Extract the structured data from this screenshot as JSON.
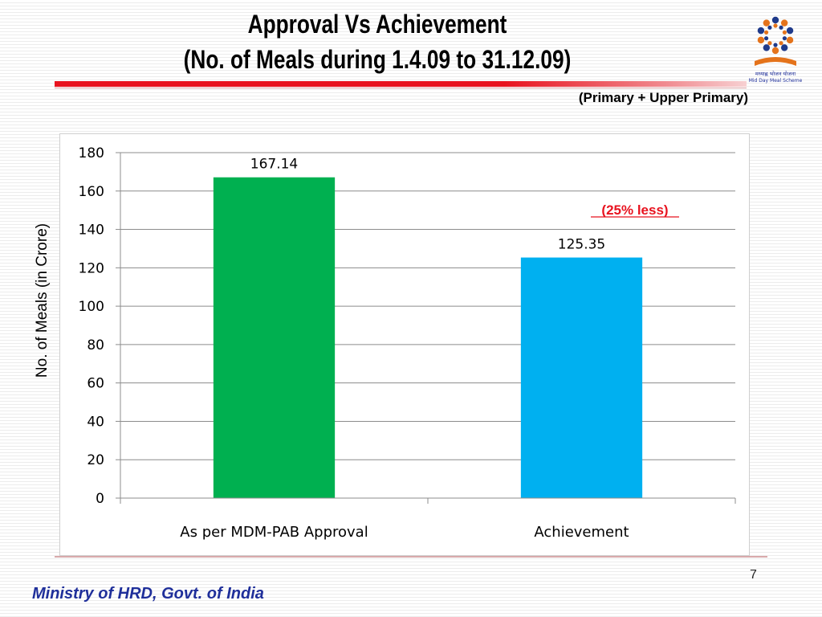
{
  "header": {
    "title_line1": "Approval Vs Achievement",
    "title_line2": "(No. of Meals during 1.4.09 to 31.12.09)",
    "subtitle": "(Primary + Upper Primary)"
  },
  "logo": {
    "icon": "mid-day-meal-scheme-logo",
    "caption_hindi": "मध्याह्न भोजन योजना",
    "caption_english": "Mid Day Meal Scheme"
  },
  "chart_data": {
    "type": "bar",
    "categories": [
      "As per MDM-PAB Approval",
      "Achievement"
    ],
    "values": [
      167.14,
      125.35
    ],
    "data_labels": [
      "167.14",
      "125.35"
    ],
    "colors": [
      "#00b050",
      "#00b0f0"
    ],
    "title": "",
    "xlabel": "",
    "ylabel": "No. of Meals  (in Crore)",
    "ylim": [
      0,
      180
    ],
    "yticks": [
      0,
      20,
      40,
      60,
      80,
      100,
      120,
      140,
      160,
      180
    ],
    "grid": true,
    "legend": "none",
    "annotation": {
      "text": "(25% less)",
      "color": "#e8131f"
    }
  },
  "footer": {
    "ministry": "Ministry of HRD, Govt. of India",
    "page_number": "7"
  }
}
